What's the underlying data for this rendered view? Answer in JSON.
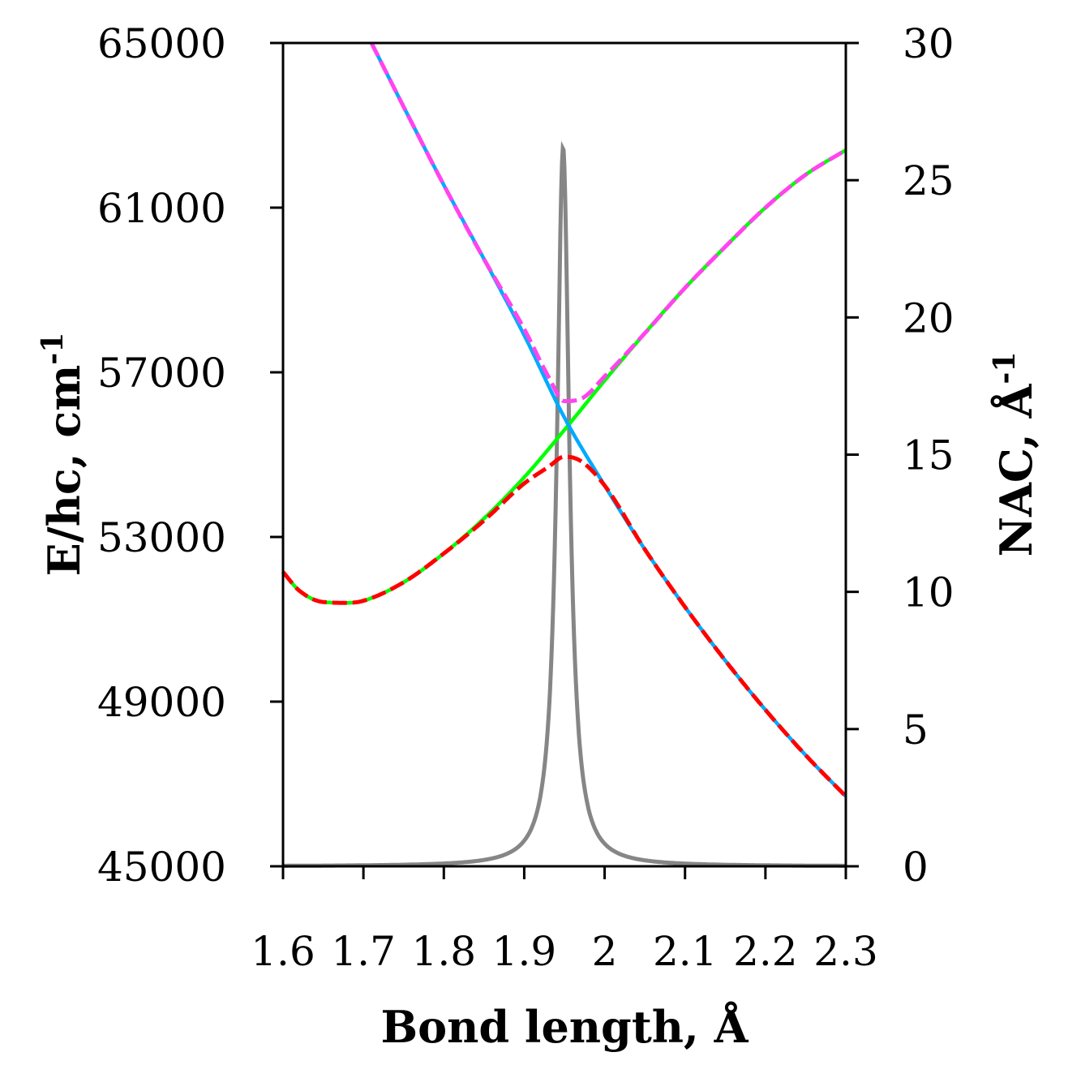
{
  "chart_data": {
    "type": "line",
    "title": "",
    "xlabel": "Bond length, Å",
    "ylabel_left": {
      "text": "E/hc, cm",
      "sup": "-1"
    },
    "ylabel_right": {
      "text": "NAC, Å",
      "sup": "-1"
    },
    "xlim": [
      1.6,
      2.3
    ],
    "ylim_left": [
      45000,
      65000
    ],
    "ylim_right": [
      0,
      30
    ],
    "x_ticks": [
      1.6,
      1.7,
      1.8,
      1.9,
      2.0,
      2.1,
      2.2,
      2.3
    ],
    "x_tick_labels": [
      "1.6",
      "1.7",
      "1.8",
      "1.9",
      "2",
      "2.1",
      "2.2",
      "2.3"
    ],
    "y_left_ticks": [
      45000,
      49000,
      53000,
      57000,
      61000,
      65000
    ],
    "y_left_tick_labels": [
      "45000",
      "49000",
      "53000",
      "57000",
      "61000",
      "65000"
    ],
    "y_right_ticks": [
      0,
      5,
      10,
      15,
      20,
      25,
      30
    ],
    "y_right_tick_labels": [
      "0",
      "5",
      "10",
      "15",
      "20",
      "25",
      "30"
    ],
    "grid": false,
    "legend": "none",
    "series": [
      {
        "axis": "left",
        "color": "#00ff00",
        "style": "solid",
        "x": [
          1.6,
          1.62,
          1.65,
          1.68,
          1.7,
          1.75,
          1.8,
          1.85,
          1.9,
          1.95,
          2.0,
          2.05,
          2.1,
          2.15,
          2.2,
          2.25,
          2.3
        ],
        "y": [
          52150,
          51700,
          51420,
          51400,
          51450,
          51900,
          52600,
          53450,
          54450,
          55600,
          56800,
          57950,
          59050,
          60050,
          61000,
          61800,
          62400
        ]
      },
      {
        "axis": "left",
        "color": "#00aaff",
        "style": "solid",
        "x": [
          1.71,
          1.75,
          1.8,
          1.85,
          1.9,
          1.95,
          2.0,
          2.05,
          2.1,
          2.15,
          2.2,
          2.25,
          2.3
        ],
        "y": [
          65000,
          63450,
          61550,
          59750,
          57900,
          55900,
          54250,
          52700,
          51300,
          50000,
          48800,
          47700,
          46700
        ]
      },
      {
        "axis": "left",
        "color": "#ff0000",
        "style": "dashed",
        "x": [
          1.6,
          1.62,
          1.65,
          1.68,
          1.7,
          1.75,
          1.8,
          1.85,
          1.9,
          1.93,
          1.95,
          1.97,
          2.0,
          2.05,
          2.1,
          2.15,
          2.2,
          2.25,
          2.3
        ],
        "y": [
          52150,
          51700,
          51420,
          51400,
          51450,
          51900,
          52600,
          53400,
          54300,
          54700,
          54950,
          54850,
          54250,
          52700,
          51300,
          50000,
          48800,
          47700,
          46700
        ]
      },
      {
        "axis": "left",
        "color": "#ff44ee",
        "style": "dashed",
        "x": [
          1.71,
          1.75,
          1.8,
          1.85,
          1.9,
          1.93,
          1.95,
          1.97,
          2.0,
          2.05,
          2.1,
          2.15,
          2.2,
          2.25,
          2.3
        ],
        "y": [
          65000,
          63450,
          61550,
          59750,
          58050,
          56900,
          56300,
          56350,
          56900,
          57950,
          59050,
          60050,
          61000,
          61800,
          62400
        ]
      },
      {
        "axis": "right",
        "color": "#808080",
        "style": "solid",
        "peak_x": 1.9484,
        "peak_y": 26.2,
        "half_width": 0.0093,
        "x": [
          1.6,
          1.8,
          1.9,
          1.93,
          1.9484,
          1.97,
          2.0,
          2.1,
          2.3
        ],
        "y": [
          0.02,
          0.1,
          0.95,
          5.3,
          26.2,
          4.0,
          0.83,
          0.09,
          0.02
        ]
      }
    ]
  }
}
